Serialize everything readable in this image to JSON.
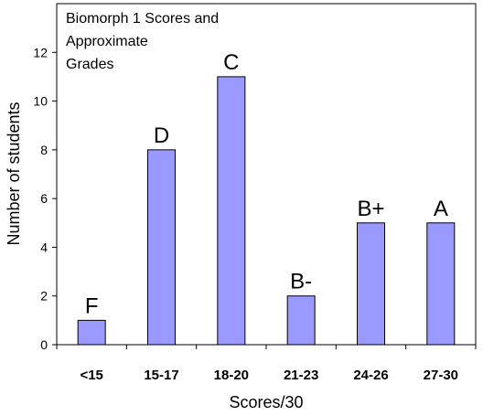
{
  "chart_data": {
    "type": "bar",
    "title_lines": [
      "Biomorph 1 Scores and",
      "Approximate",
      "Grades"
    ],
    "xlabel": "Scores/30",
    "ylabel": "Number of students",
    "categories": [
      "<15",
      "15-17",
      "18-20",
      "21-23",
      "24-26",
      "27-30"
    ],
    "values": [
      1,
      8,
      11,
      2,
      5,
      5
    ],
    "data_labels": [
      "F",
      "D",
      "C",
      "B-",
      "B+",
      "A"
    ],
    "ylim": [
      0,
      14
    ],
    "yticks": [
      0,
      2,
      4,
      6,
      8,
      10,
      12
    ],
    "grid": false,
    "legend": "none",
    "colors": {
      "bar_fill": "#9999ff",
      "bar_stroke": "#000000",
      "axis": "#000000"
    }
  }
}
